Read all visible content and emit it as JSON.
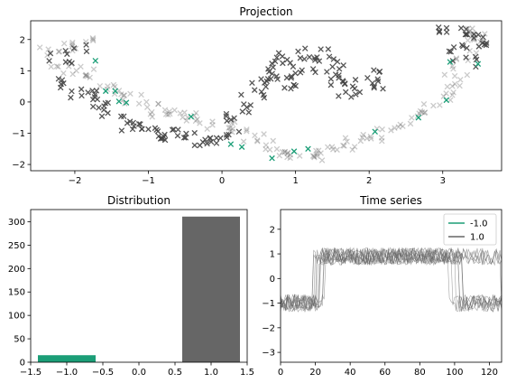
{
  "colors": {
    "class_neg": "#1b9e77",
    "class_pos": "#666666",
    "series_neg": "#1b9e77",
    "series_pos": "#666666"
  },
  "chart_data": [
    {
      "type": "scatter",
      "title": "Projection",
      "marker": "x",
      "xlim": [
        -2.6,
        3.8
      ],
      "ylim": [
        -2.2,
        2.6
      ],
      "xticks": [
        -2,
        -1,
        0,
        1,
        2,
        3
      ],
      "yticks": [
        -2,
        -1,
        0,
        1,
        2
      ],
      "grid": false,
      "series": [
        {
          "label_value": -1.0,
          "color": "#1b9e77",
          "alpha": 1.0,
          "x": [
            -1.72,
            -1.58,
            -1.45,
            -1.4,
            -1.3,
            -0.42,
            0.12,
            0.27,
            0.68,
            0.98,
            1.17,
            2.08,
            2.67,
            3.05,
            3.1,
            3.48
          ],
          "y": [
            1.32,
            0.35,
            0.35,
            0.02,
            -0.02,
            -0.47,
            -1.35,
            -1.44,
            -1.8,
            -1.58,
            -1.5,
            -0.95,
            -0.5,
            0.06,
            1.28,
            1.22
          ]
        },
        {
          "label_value": 1.0,
          "color": "#666666",
          "alpha": 0.35,
          "description": "lighter gray crosses (aggregated clusters)",
          "x": [
            -2.3,
            -2.1,
            -1.9,
            -2.2,
            -2.0,
            -1.8,
            -1.6,
            -1.4,
            -1.2,
            -1.0,
            -0.8,
            -0.6,
            -0.4,
            -0.2,
            0.0,
            0.2,
            0.4,
            0.6,
            0.8,
            1.0,
            1.2,
            1.4,
            1.6,
            1.8,
            2.0,
            2.2,
            2.4,
            2.6,
            2.8,
            3.0,
            3.1,
            3.2,
            3.3,
            3.4,
            3.5,
            3.3
          ],
          "y": [
            1.6,
            1.8,
            1.9,
            1.2,
            1.0,
            0.9,
            0.5,
            0.3,
            0.1,
            -0.2,
            -0.3,
            -0.4,
            -0.5,
            -0.7,
            -0.8,
            -0.9,
            -1.2,
            -1.4,
            -1.6,
            -1.7,
            -1.7,
            -1.6,
            -1.5,
            -1.3,
            -1.1,
            -1.0,
            -0.8,
            -0.5,
            -0.2,
            0.2,
            0.6,
            1.0,
            1.5,
            1.9,
            2.1,
            2.3
          ]
        },
        {
          "label_value": 1.0,
          "color": "#444444",
          "alpha": 0.9,
          "description": "dark gray crosses (aggregated clusters)",
          "x": [
            -2.3,
            -2.2,
            -2.0,
            -1.9,
            -1.8,
            -1.6,
            -1.5,
            -1.3,
            -1.2,
            -1.0,
            -0.9,
            -0.7,
            -0.5,
            -0.3,
            -0.1,
            0.1,
            0.2,
            0.3,
            0.4,
            0.5,
            0.6,
            0.7,
            0.8,
            0.9,
            1.0,
            1.1,
            1.2,
            1.3,
            1.4,
            1.5,
            1.6,
            1.7,
            1.8,
            2.0,
            2.2,
            3.2,
            3.3,
            3.4,
            3.5,
            3.3,
            3.1
          ],
          "y": [
            0.6,
            1.4,
            1.7,
            0.3,
            0.2,
            0.0,
            -0.3,
            -0.6,
            -0.8,
            -1.0,
            -1.1,
            -1.0,
            -1.1,
            -1.3,
            -1.2,
            -1.0,
            -0.5,
            -0.2,
            0.3,
            0.6,
            0.9,
            1.4,
            1.2,
            0.8,
            0.5,
            0.9,
            1.5,
            1.6,
            1.3,
            1.0,
            0.6,
            0.3,
            0.6,
            0.9,
            0.6,
            1.7,
            2.2,
            2.0,
            1.8,
            1.3,
            2.3
          ]
        }
      ]
    },
    {
      "type": "bar",
      "title": "Distribution",
      "categories": [
        -1.0,
        1.0
      ],
      "values": [
        15,
        311
      ],
      "colors": [
        "#1b9e77",
        "#666666"
      ],
      "bar_width": 0.8,
      "xlim": [
        -1.5,
        1.5
      ],
      "ylim": [
        0,
        326
      ],
      "xticks": [
        -1.5,
        -1.0,
        -0.5,
        0.0,
        0.5,
        1.0,
        1.5
      ],
      "xtick_labels": [
        "−1.5",
        "−1.0",
        "−0.5",
        "0.0",
        "0.5",
        "1.0",
        "1.5"
      ],
      "yticks": [
        0,
        50,
        100,
        150,
        200,
        250,
        300
      ],
      "grid": false
    },
    {
      "type": "line",
      "title": "Time series",
      "xlim": [
        0,
        127
      ],
      "ylim": [
        -3.4,
        2.8
      ],
      "xticks": [
        0,
        20,
        40,
        60,
        80,
        100,
        120
      ],
      "yticks": [
        -3,
        -2,
        -1,
        0,
        1,
        2
      ],
      "ytick_labels": [
        "−3",
        "−2",
        "−1",
        "0",
        "1",
        "2"
      ],
      "legend": {
        "placement": "top-right",
        "entries": [
          {
            "label": "-1.0",
            "color": "#1b9e77"
          },
          {
            "label": "1.0",
            "color": "#666666"
          }
        ]
      },
      "series_pattern": {
        "low_level": -1.0,
        "high_level": 0.9,
        "rise_x": 22,
        "fall_x": 100,
        "n_lines": 12,
        "noise": 0.35,
        "length": 128
      },
      "grid": false
    }
  ]
}
